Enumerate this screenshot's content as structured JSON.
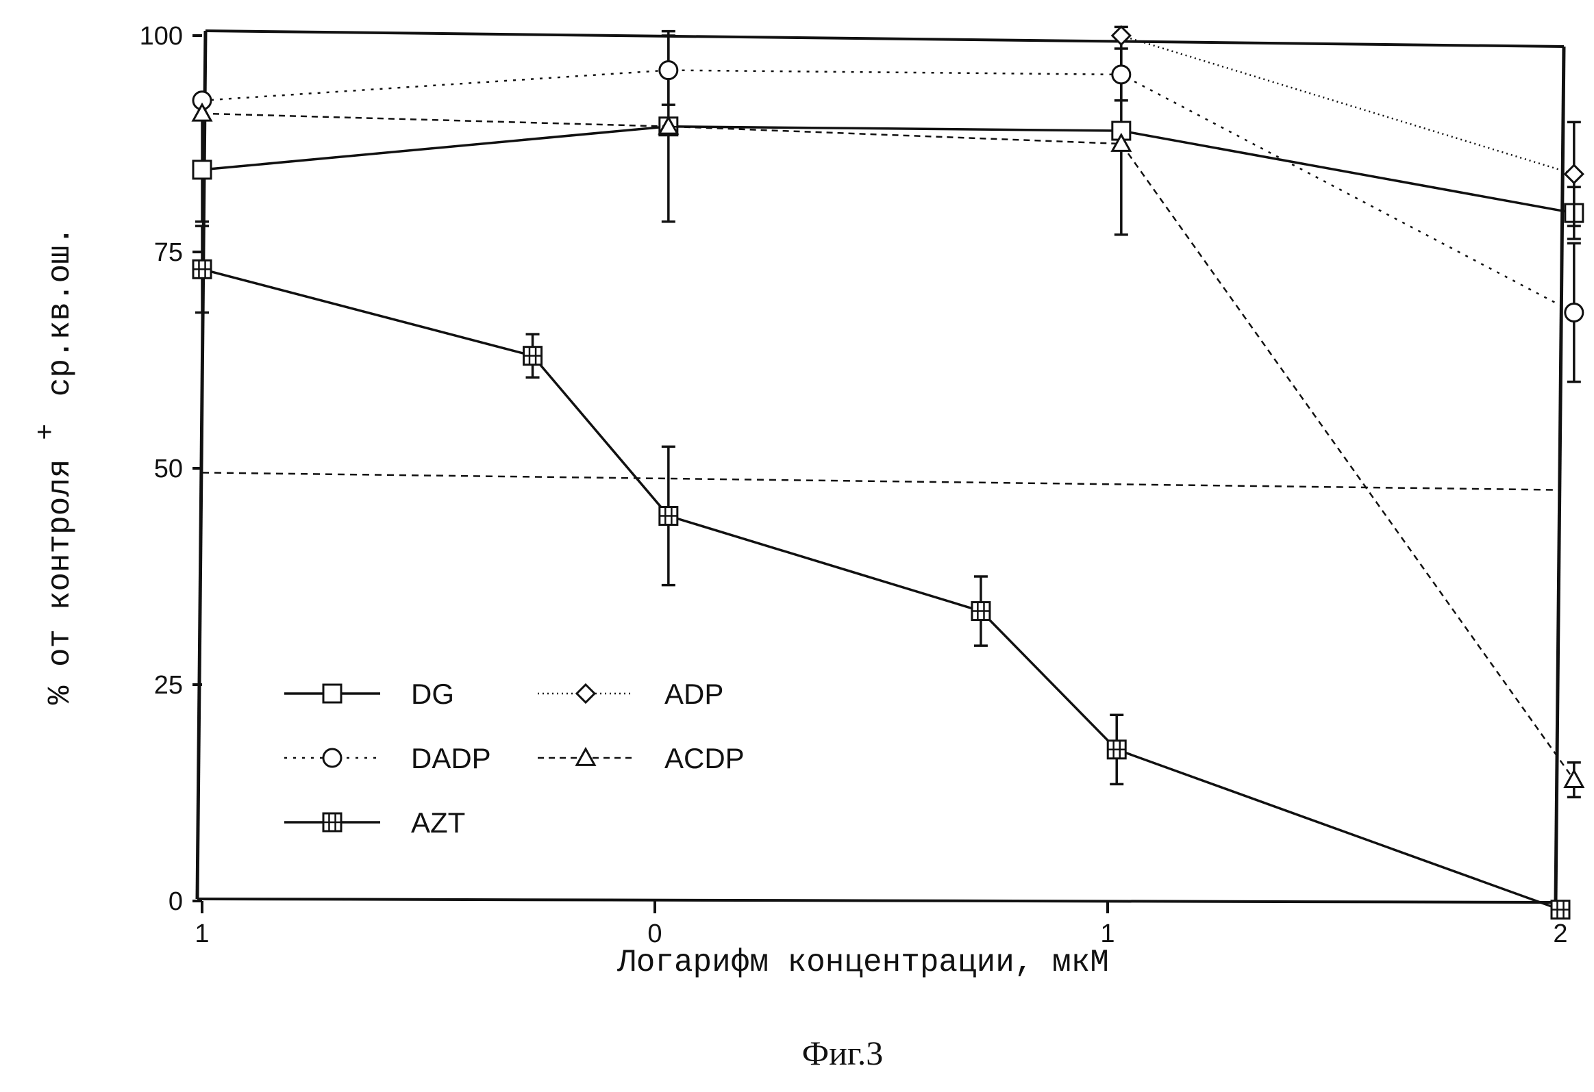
{
  "chart_data": {
    "type": "line",
    "xlabel": "Логарифм концентрации, мкМ",
    "ylabel_main": "% от контроля",
    "ylabel_pm": "+",
    "ylabel_tail": "ср.кв.ош.",
    "caption": "Фиг.3",
    "xlim": [
      -1,
      2
    ],
    "ylim": [
      0,
      100
    ],
    "x_ticks": [
      {
        "value": -1,
        "label": "1"
      },
      {
        "value": 0,
        "label": "0"
      },
      {
        "value": 1,
        "label": "1"
      },
      {
        "value": 2,
        "label": "2"
      }
    ],
    "y_ticks": [
      {
        "value": 0,
        "label": "0"
      },
      {
        "value": 25,
        "label": "25"
      },
      {
        "value": 50,
        "label": "50"
      },
      {
        "value": 75,
        "label": "75"
      },
      {
        "value": 100,
        "label": "100"
      }
    ],
    "reference_line": {
      "y_start": 49.5,
      "y_end": 47.5
    },
    "legend_position": "bottom-left",
    "series": [
      {
        "name": "DG",
        "marker": "square",
        "dash": "solid",
        "x": [
          -1,
          0.03,
          1.03,
          2.03
        ],
        "y": [
          84.5,
          89.5,
          89,
          79.5
        ],
        "err": [
          6,
          11,
          12,
          3
        ]
      },
      {
        "name": "ADP",
        "marker": "diamond",
        "dash": "dotted-fine",
        "x": [
          1.03,
          2.03
        ],
        "y": [
          100,
          84
        ],
        "err": [
          0,
          6
        ]
      },
      {
        "name": "DADP",
        "marker": "circle",
        "dash": "dotted",
        "x": [
          -1,
          0.03,
          1.03,
          2.03
        ],
        "y": [
          92.5,
          96,
          95.5,
          68
        ],
        "err": [
          0,
          4,
          3,
          8
        ]
      },
      {
        "name": "ACDP",
        "marker": "triangle",
        "dash": "dashed",
        "x": [
          -1,
          0.03,
          1.03,
          2.03
        ],
        "y": [
          91,
          89.5,
          87.5,
          14
        ],
        "err": [
          0,
          0,
          0,
          2
        ]
      },
      {
        "name": "AZT",
        "marker": "boxplus",
        "dash": "solid",
        "x": [
          -1,
          -0.27,
          0.03,
          0.72,
          1.02,
          2.0
        ],
        "y": [
          73,
          63,
          44.5,
          33.5,
          17.5,
          -1
        ],
        "err": [
          5,
          2.5,
          8,
          4,
          4,
          0
        ]
      }
    ]
  }
}
